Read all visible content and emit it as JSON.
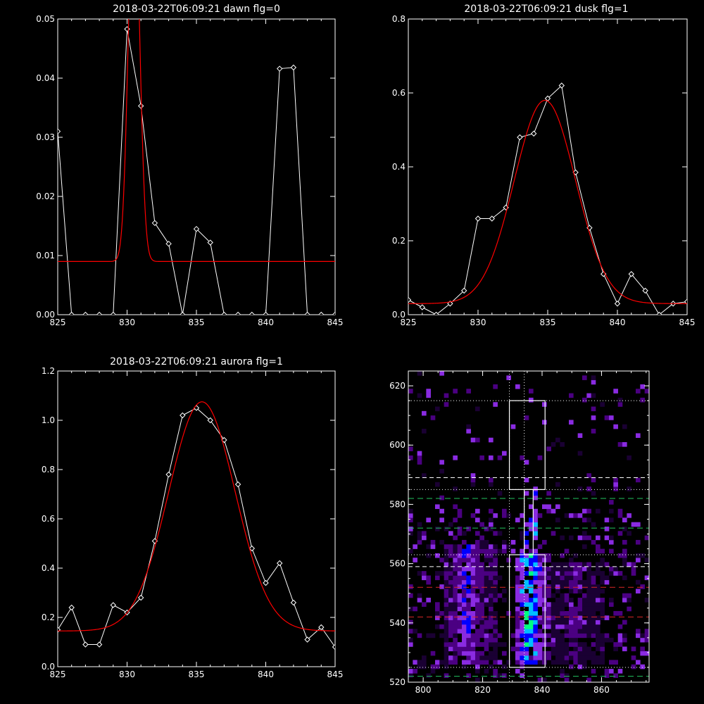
{
  "chart_data": [
    {
      "type": "line",
      "title": "2018-03-22T06:09:21 dawn flg=0",
      "xlim": [
        825,
        845
      ],
      "ylim": [
        0,
        0.05
      ],
      "xticks": [
        825,
        830,
        835,
        840,
        845
      ],
      "yticks": [
        0.0,
        0.01,
        0.02,
        0.03,
        0.04,
        0.05
      ],
      "ytick_labels": [
        "0.00",
        "0.01",
        "0.02",
        "0.03",
        "0.04",
        "0.05"
      ],
      "series": [
        {
          "color": "#ffffff",
          "marker": "diamond",
          "x": [
            825,
            826,
            827,
            828,
            829,
            830,
            831,
            832,
            833,
            834,
            835,
            836,
            837,
            838,
            839,
            840,
            841,
            842,
            843,
            844,
            845
          ],
          "y": [
            0.031,
            0.0,
            0.0,
            0.0,
            0.0,
            0.0483,
            0.0353,
            0.0155,
            0.012,
            0.0,
            0.0145,
            0.0122,
            0.0,
            0.0,
            0.0,
            0.0,
            0.0416,
            0.0418,
            0.0,
            0.0,
            0.0
          ]
        },
        {
          "color": "#ff0000",
          "fit": "gaussian",
          "amplitude": 0.065,
          "center": 830.5,
          "sigma": 0.4,
          "baseline": 0.009
        }
      ]
    },
    {
      "type": "line",
      "title": "2018-03-22T06:09:21 dusk flg=1",
      "xlim": [
        825,
        845
      ],
      "ylim": [
        0,
        0.8
      ],
      "xticks": [
        825,
        830,
        835,
        840,
        845
      ],
      "yticks": [
        0.0,
        0.2,
        0.4,
        0.6,
        0.8
      ],
      "ytick_labels": [
        "0.0",
        "0.2",
        "0.4",
        "0.6",
        "0.8"
      ],
      "series": [
        {
          "color": "#ffffff",
          "marker": "diamond",
          "x": [
            825,
            826,
            827,
            828,
            829,
            830,
            831,
            832,
            833,
            834,
            835,
            836,
            837,
            838,
            839,
            840,
            841,
            842,
            843,
            844,
            845
          ],
          "y": [
            0.04,
            0.02,
            0.0,
            0.03,
            0.065,
            0.26,
            0.26,
            0.29,
            0.48,
            0.49,
            0.585,
            0.62,
            0.385,
            0.235,
            0.11,
            0.03,
            0.11,
            0.065,
            0.0,
            0.03,
            0.035
          ]
        },
        {
          "color": "#ff0000",
          "fit": "gaussian",
          "amplitude": 0.55,
          "center": 834.8,
          "sigma": 2.2,
          "baseline": 0.03
        }
      ]
    },
    {
      "type": "line",
      "title": "2018-03-22T06:09:21 aurora flg=1",
      "xlim": [
        825,
        845
      ],
      "ylim": [
        0,
        1.2
      ],
      "xticks": [
        825,
        830,
        835,
        840,
        845
      ],
      "yticks": [
        0.0,
        0.2,
        0.4,
        0.6,
        0.8,
        1.0,
        1.2
      ],
      "ytick_labels": [
        "0.0",
        "0.2",
        "0.4",
        "0.6",
        "0.8",
        "1.0",
        "1.2"
      ],
      "series": [
        {
          "color": "#ffffff",
          "marker": "diamond",
          "x": [
            825,
            826,
            827,
            828,
            829,
            830,
            831,
            832,
            833,
            834,
            835,
            836,
            837,
            838,
            839,
            840,
            841,
            842,
            843,
            844,
            845
          ],
          "y": [
            0.15,
            0.24,
            0.09,
            0.09,
            0.25,
            0.22,
            0.28,
            0.51,
            0.78,
            1.02,
            1.05,
            1.0,
            0.92,
            0.74,
            0.48,
            0.34,
            0.42,
            0.26,
            0.11,
            0.16,
            0.08
          ]
        },
        {
          "color": "#ff0000",
          "fit": "gaussian",
          "amplitude": 0.93,
          "center": 835.4,
          "sigma": 2.4,
          "baseline": 0.145
        }
      ]
    },
    {
      "type": "heatmap",
      "xlim": [
        795,
        876
      ],
      "ylim": [
        520,
        625
      ],
      "xticks": [
        800,
        820,
        840,
        860
      ],
      "yticks": [
        520,
        540,
        560,
        580,
        600,
        620
      ],
      "colormap": [
        "#1a0033",
        "#4b0082",
        "#8a2be2",
        "#0000ff",
        "#00bfff",
        "#00ff7f"
      ],
      "hot_columns": [
        {
          "x_range": [
            806,
            824
          ],
          "y_range": [
            525,
            565
          ],
          "peak_x": 814,
          "strength": 0.6
        },
        {
          "x_range": [
            830,
            842
          ],
          "y_range": [
            525,
            563
          ],
          "peak_x": 835,
          "strength": 1.0
        },
        {
          "x_range": [
            842,
            860
          ],
          "y_range": [
            525,
            560
          ],
          "peak_x": 850,
          "strength": 0.3
        }
      ],
      "boxes": [
        {
          "x": [
            829,
            841
          ],
          "y": [
            585,
            615
          ]
        },
        {
          "x": [
            834,
            837
          ],
          "y": [
            563,
            585
          ]
        },
        {
          "x": [
            829,
            841
          ],
          "y": [
            525,
            563
          ]
        }
      ],
      "dotted_vertical_x": [
        829,
        834
      ],
      "dotted_horizontal_y": [
        615,
        585,
        563,
        525
      ],
      "white_dashed_y": [
        589,
        559
      ],
      "green_dashed_y": [
        582,
        572,
        522
      ],
      "red_dashed_y": [
        552,
        542
      ],
      "line_colors": {
        "white": "#ffffff",
        "green": "#22c55e",
        "red": "#dc2626"
      }
    }
  ]
}
